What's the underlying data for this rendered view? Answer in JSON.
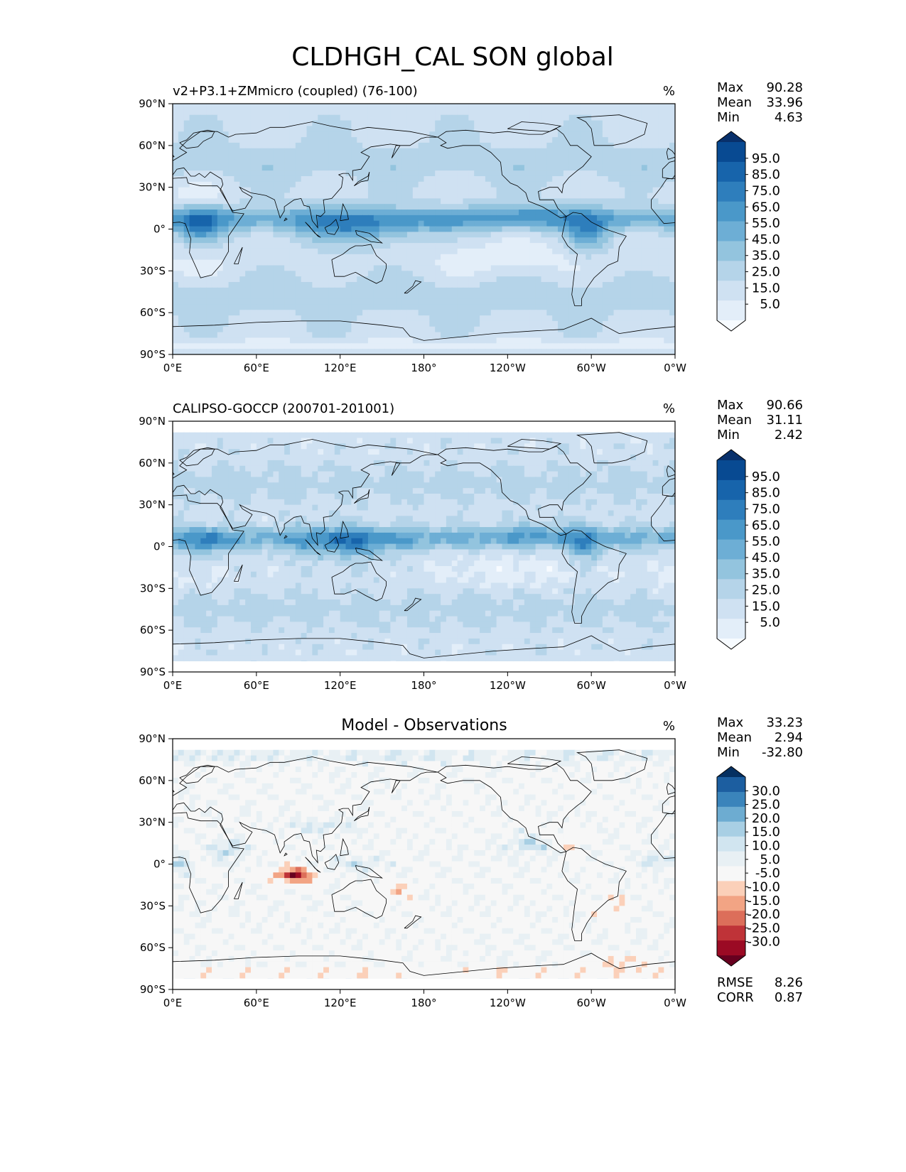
{
  "title": "CLDHGH_CAL SON global",
  "lon_ticks": [
    "0°E",
    "60°E",
    "120°E",
    "180°",
    "120°W",
    "60°W",
    "0°W"
  ],
  "lat_ticks": [
    "90°N",
    "60°N",
    "30°N",
    "0°",
    "30°S",
    "60°S",
    "90°S"
  ],
  "colors": {
    "blues": [
      "#f7fbff",
      "#e3eef9",
      "#cfe1f2",
      "#b5d4e9",
      "#93c4de",
      "#6daed5",
      "#4a98c9",
      "#2e7ebc",
      "#1764ab",
      "#084a92",
      "#08306b"
    ],
    "diff": [
      "#67001f",
      "#9b0a24",
      "#bf3338",
      "#dc6e5a",
      "#f2a484",
      "#fbd0b9",
      "#f7f7f7",
      "#e8f0f4",
      "#d1e5f0",
      "#a8cfe4",
      "#6dacd1",
      "#3a84bb",
      "#1c5ea0",
      "#053061"
    ],
    "coast": "#000000"
  },
  "chart_data": [
    {
      "type": "heatmap",
      "title": "v2+P3.1+ZMmicro (coupled) (76-100)",
      "units": "%",
      "stats": [
        {
          "label": "Max",
          "value": "90.28"
        },
        {
          "label": "Mean",
          "value": "33.96"
        },
        {
          "label": "Min",
          "value": "4.63"
        }
      ],
      "colorbar": {
        "labels": [
          "95.0",
          "85.0",
          "75.0",
          "65.0",
          "55.0",
          "45.0",
          "35.0",
          "25.0",
          "15.0",
          "5.0"
        ],
        "levels": [
          0,
          5,
          15,
          25,
          35,
          45,
          55,
          65,
          75,
          85,
          95,
          100
        ]
      },
      "xlim": [
        0,
        360
      ],
      "ylim": [
        -90,
        90
      ],
      "field": "model"
    },
    {
      "type": "heatmap",
      "title": "CALIPSO-GOCCP (200701-201001)",
      "units": "%",
      "stats": [
        {
          "label": "Max",
          "value": "90.66"
        },
        {
          "label": "Mean",
          "value": "31.11"
        },
        {
          "label": "Min",
          "value": "2.42"
        }
      ],
      "colorbar": {
        "labels": [
          "95.0",
          "85.0",
          "75.0",
          "65.0",
          "55.0",
          "45.0",
          "35.0",
          "25.0",
          "15.0",
          "5.0"
        ],
        "levels": [
          0,
          5,
          15,
          25,
          35,
          45,
          55,
          65,
          75,
          85,
          95,
          100
        ]
      },
      "xlim": [
        0,
        360
      ],
      "ylim": [
        -82,
        82
      ],
      "field": "obs"
    },
    {
      "type": "heatmap",
      "title": "Model - Observations",
      "units": "%",
      "stats": [
        {
          "label": "Max",
          "value": "33.23"
        },
        {
          "label": "Mean",
          "value": "2.94"
        },
        {
          "label": "Min",
          "value": "-32.80"
        }
      ],
      "colorbar": {
        "labels": [
          "30.0",
          "25.0",
          "20.0",
          "15.0",
          "10.0",
          "5.0",
          "-5.0",
          "-10.0",
          "-15.0",
          "-20.0",
          "-25.0",
          "-30.0"
        ],
        "levels": [
          -35,
          -30,
          -25,
          -20,
          -15,
          -10,
          -5,
          5,
          10,
          15,
          20,
          25,
          30,
          35
        ]
      },
      "xlim": [
        0,
        360
      ],
      "ylim": [
        -82,
        82
      ],
      "extra_stats": [
        {
          "label": "RMSE",
          "value": "8.26"
        },
        {
          "label": "CORR",
          "value": "0.87"
        }
      ],
      "field": "diff"
    }
  ]
}
